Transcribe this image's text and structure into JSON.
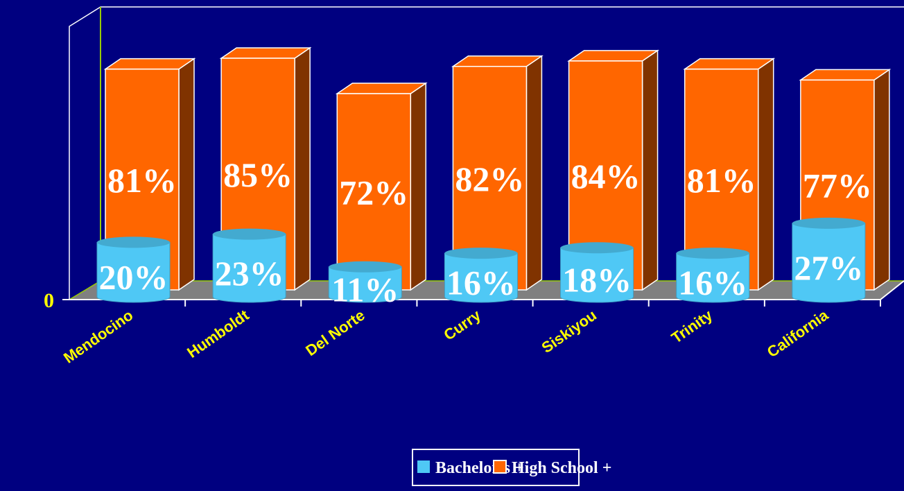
{
  "chart_data": {
    "type": "bar",
    "categories": [
      "Mendocino",
      "Humboldt",
      "Del Norte",
      "Curry",
      "Siskiyou",
      "Trinity",
      "California"
    ],
    "series": [
      {
        "name": "Bachelor's +",
        "color": "#4fc8f5",
        "values": [
          20,
          23,
          11,
          16,
          18,
          16,
          27
        ],
        "value_labels": [
          "20%",
          "23%",
          "11%",
          "16%",
          "18%",
          "16%",
          "27%"
        ]
      },
      {
        "name": "High School +",
        "color": "#ff6600",
        "values": [
          81,
          85,
          72,
          82,
          84,
          81,
          77
        ],
        "value_labels": [
          "81%",
          "85%",
          "72%",
          "82%",
          "84%",
          "81%",
          "77%"
        ]
      }
    ],
    "ylim": [
      0,
      100
    ],
    "yticks": [
      0
    ],
    "legend": "bottom"
  }
}
